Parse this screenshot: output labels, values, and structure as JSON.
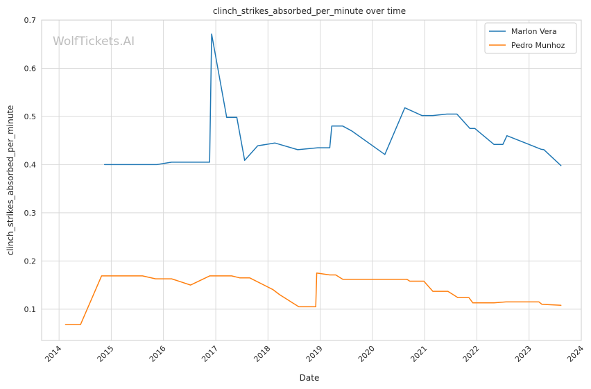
{
  "chart_data": {
    "type": "line",
    "title": "clinch_strikes_absorbed_per_minute over time",
    "xlabel": "Date",
    "ylabel": "clinch_strikes_absorbed_per_minute",
    "watermark": "WolfTickets.AI",
    "xlim": [
      "2013-09-01",
      "2024-01-01"
    ],
    "ylim": [
      0.035,
      0.7
    ],
    "x_ticks": [
      "2014",
      "2015",
      "2016",
      "2017",
      "2018",
      "2019",
      "2020",
      "2021",
      "2022",
      "2023",
      "2024"
    ],
    "y_ticks": [
      0.1,
      0.2,
      0.3,
      0.4,
      0.5,
      0.6,
      0.7
    ],
    "y_tick_labels": [
      "0.1",
      "0.2",
      "0.3",
      "0.4",
      "0.5",
      "0.6",
      "0.7"
    ],
    "grid": true,
    "legend_position": "top-right",
    "series": [
      {
        "name": "Marlon Vera",
        "color": "#1f77b4",
        "points": [
          [
            "2014-11-15",
            0.4
          ],
          [
            "2015-11-15",
            0.4
          ],
          [
            "2016-02-27",
            0.405
          ],
          [
            "2016-11-19",
            0.405
          ],
          [
            "2016-12-03",
            0.671
          ],
          [
            "2017-03-18",
            0.498
          ],
          [
            "2017-05-28",
            0.498
          ],
          [
            "2017-07-22",
            0.409
          ],
          [
            "2017-10-21",
            0.439
          ],
          [
            "2018-02-18",
            0.445
          ],
          [
            "2018-07-28",
            0.431
          ],
          [
            "2018-12-15",
            0.435
          ],
          [
            "2019-03-09",
            0.435
          ],
          [
            "2019-03-23",
            0.48
          ],
          [
            "2019-06-08",
            0.48
          ],
          [
            "2019-08-10",
            0.47
          ],
          [
            "2020-03-28",
            0.421
          ],
          [
            "2020-08-15",
            0.518
          ],
          [
            "2020-12-12",
            0.502
          ],
          [
            "2021-02-27",
            0.502
          ],
          [
            "2021-06-05",
            0.505
          ],
          [
            "2021-08-14",
            0.505
          ],
          [
            "2021-11-13",
            0.475
          ],
          [
            "2021-12-18",
            0.475
          ],
          [
            "2022-04-30",
            0.442
          ],
          [
            "2022-07-02",
            0.442
          ],
          [
            "2022-07-30",
            0.46
          ],
          [
            "2023-03-25",
            0.432
          ],
          [
            "2023-04-15",
            0.431
          ],
          [
            "2023-08-12",
            0.398
          ]
        ]
      },
      {
        "name": "Pedro Munhoz",
        "color": "#ff7f0e",
        "points": [
          [
            "2014-02-15",
            0.068
          ],
          [
            "2014-05-31",
            0.068
          ],
          [
            "2014-10-25",
            0.169
          ],
          [
            "2015-08-08",
            0.169
          ],
          [
            "2015-11-07",
            0.163
          ],
          [
            "2016-02-27",
            0.163
          ],
          [
            "2016-07-09",
            0.15
          ],
          [
            "2016-11-19",
            0.169
          ],
          [
            "2017-04-22",
            0.169
          ],
          [
            "2017-06-17",
            0.165
          ],
          [
            "2017-08-26",
            0.165
          ],
          [
            "2018-02-03",
            0.141
          ],
          [
            "2018-03-24",
            0.13
          ],
          [
            "2018-08-04",
            0.105
          ],
          [
            "2018-12-01",
            0.105
          ],
          [
            "2018-12-08",
            0.175
          ],
          [
            "2019-03-09",
            0.171
          ],
          [
            "2019-04-20",
            0.171
          ],
          [
            "2019-06-08",
            0.162
          ],
          [
            "2020-08-29",
            0.162
          ],
          [
            "2020-09-19",
            0.158
          ],
          [
            "2020-12-26",
            0.158
          ],
          [
            "2021-02-27",
            0.137
          ],
          [
            "2021-06-12",
            0.137
          ],
          [
            "2021-08-21",
            0.124
          ],
          [
            "2021-11-06",
            0.124
          ],
          [
            "2021-12-04",
            0.113
          ],
          [
            "2022-04-30",
            0.113
          ],
          [
            "2022-07-23",
            0.115
          ],
          [
            "2023-03-11",
            0.115
          ],
          [
            "2023-04-01",
            0.11
          ],
          [
            "2023-08-12",
            0.108
          ]
        ]
      }
    ]
  }
}
